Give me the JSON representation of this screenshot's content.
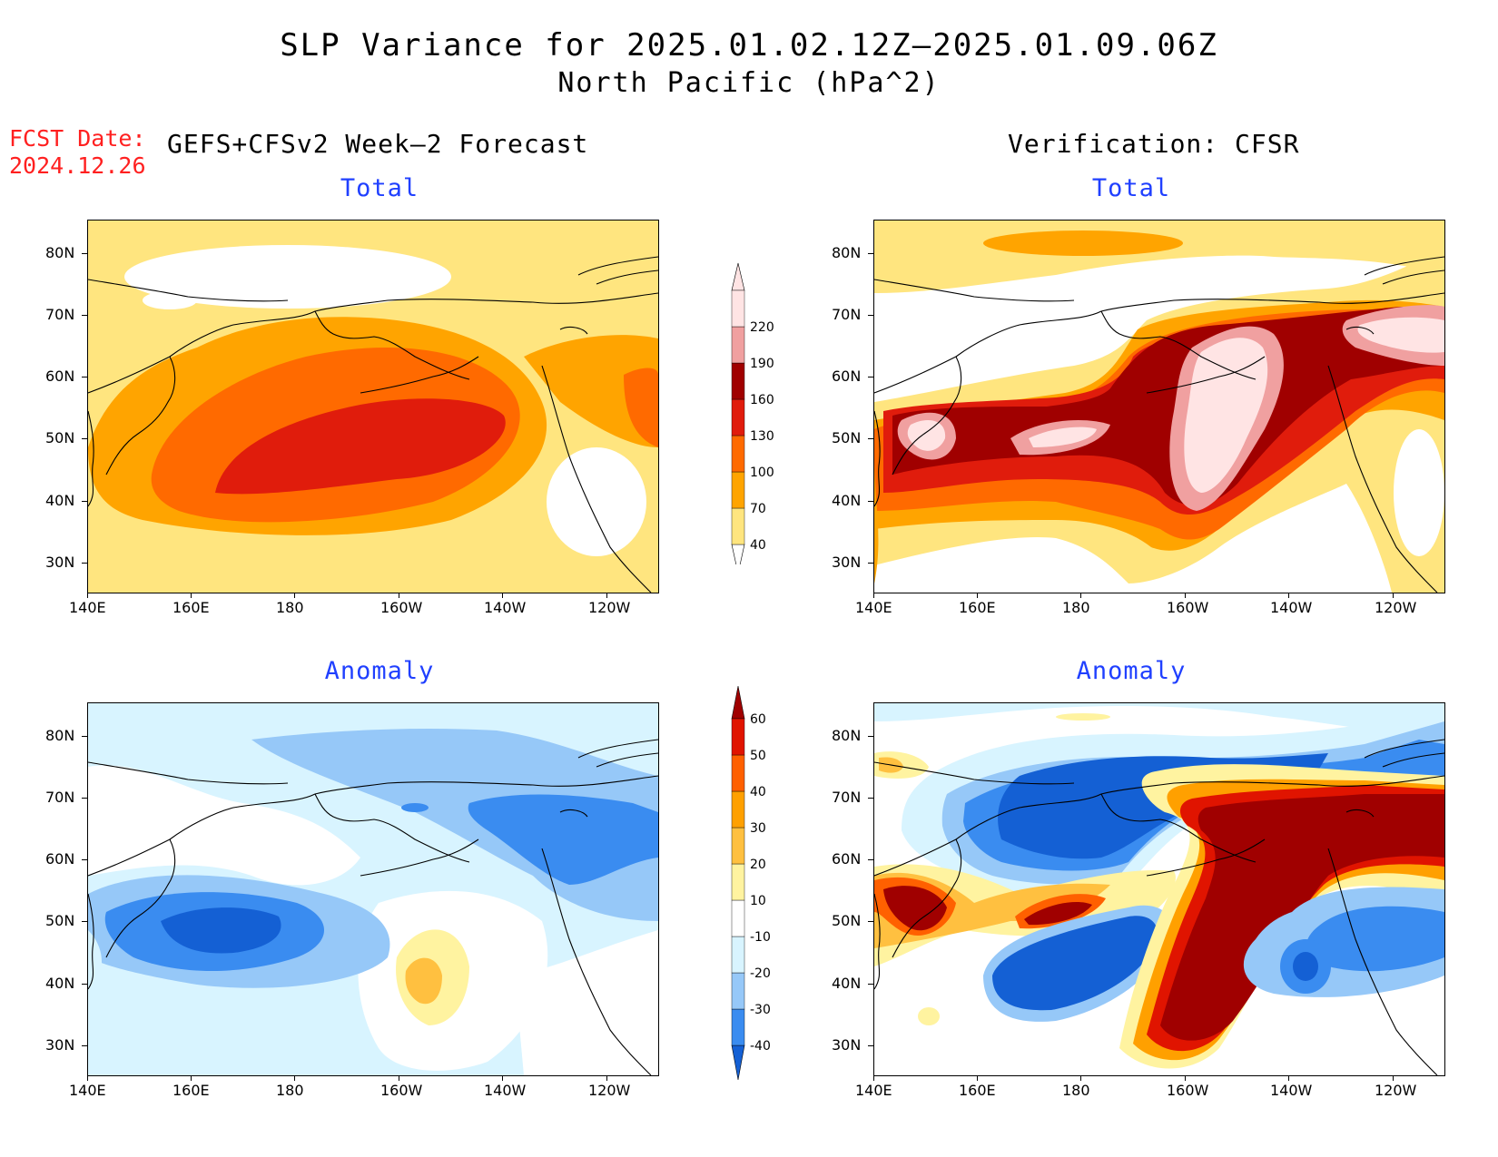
{
  "title": {
    "line1": "SLP Variance for 2025.01.02.12Z–2025.01.09.06Z",
    "line2": "North Pacific (hPa^2)"
  },
  "forecast_date": {
    "label": "FCST Date:",
    "value": "2024.12.26"
  },
  "columns": {
    "left_header": "GEFS+CFSv2 Week–2 Forecast",
    "right_header": "Verification: CFSR"
  },
  "panels": {
    "fc_total": {
      "title": "Total"
    },
    "ver_total": {
      "title": "Total"
    },
    "fc_anom": {
      "title": "Anomaly"
    },
    "ver_anom": {
      "title": "Anomaly"
    }
  },
  "axes": {
    "lat_labels": [
      "80N",
      "70N",
      "60N",
      "50N",
      "40N",
      "30N"
    ],
    "lon_labels": [
      "140E",
      "160E",
      "180",
      "160W",
      "140W",
      "120W"
    ]
  },
  "colorbars": {
    "total": {
      "levels": [
        "40",
        "70",
        "100",
        "130",
        "160",
        "190",
        "220"
      ],
      "colors": [
        "#ffe57f",
        "#ffa400",
        "#ff6a00",
        "#e01c0c",
        "#a00000",
        "#f0a0a0",
        "#ffe4e4"
      ]
    },
    "anomaly": {
      "levels": [
        "-40",
        "-30",
        "-20",
        "-10",
        "10",
        "20",
        "30",
        "40",
        "50",
        "60"
      ],
      "colors": [
        "#1460d4",
        "#3a8cf0",
        "#96c8f8",
        "#d8f4ff",
        "#ffffff",
        "#fff3a0",
        "#ffc040",
        "#ffa000",
        "#ff6000",
        "#e01400",
        "#a00000"
      ]
    }
  }
}
